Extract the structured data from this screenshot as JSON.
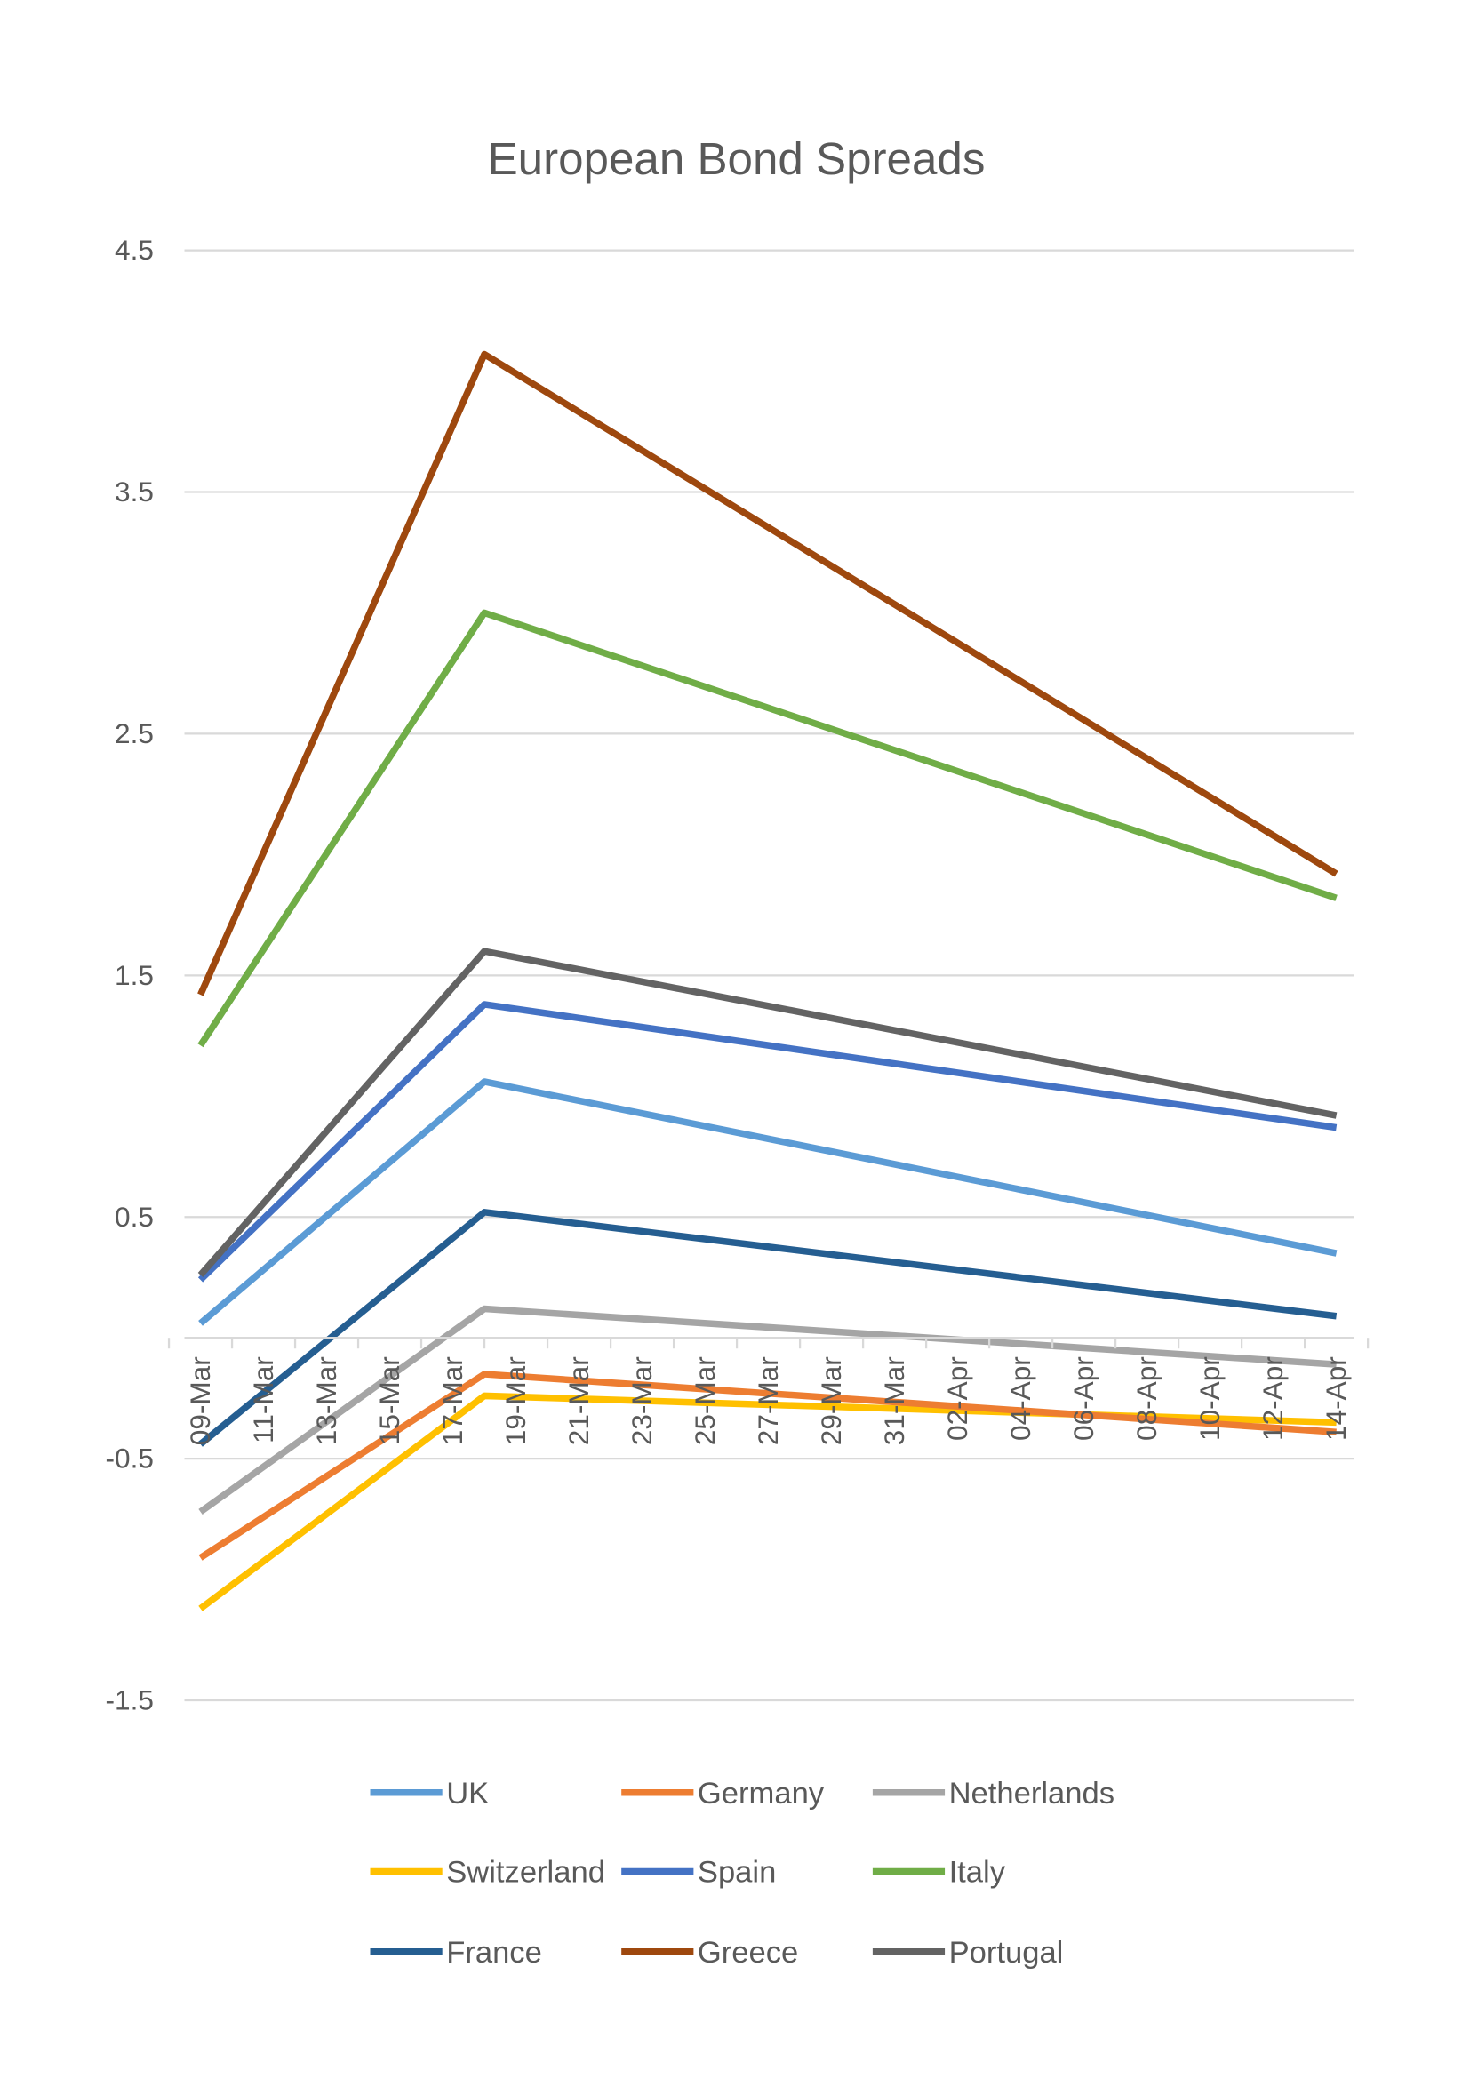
{
  "chart_data": {
    "type": "line",
    "title": "European Bond Spreads",
    "xlabel": "",
    "ylabel": "",
    "x_tick_labels": [
      "09-Mar",
      "11-Mar",
      "13-Mar",
      "15-Mar",
      "17-Mar",
      "19-Mar",
      "21-Mar",
      "23-Mar",
      "25-Mar",
      "27-Mar",
      "29-Mar",
      "31-Mar",
      "02-Apr",
      "04-Apr",
      "06-Apr",
      "08-Apr",
      "10-Apr",
      "12-Apr",
      "14-Apr"
    ],
    "x": [
      "09-Mar",
      "18-Mar",
      "14-Apr"
    ],
    "y_ticks": [
      4.5,
      3.5,
      2.5,
      1.5,
      0.5,
      -0.5,
      -1.5
    ],
    "ylim": [
      -1.5,
      4.5
    ],
    "grid": true,
    "legend_position": "bottom",
    "series": [
      {
        "name": "UK",
        "color": "#5B9BD5",
        "values": [
          0.06,
          1.06,
          0.35
        ]
      },
      {
        "name": "Germany",
        "color": "#ED7D31",
        "values": [
          -0.91,
          -0.15,
          -0.39
        ]
      },
      {
        "name": "Netherlands",
        "color": "#A5A5A5",
        "values": [
          -0.72,
          0.12,
          -0.11
        ]
      },
      {
        "name": "Switzerland",
        "color": "#FFC000",
        "values": [
          -1.12,
          -0.24,
          -0.35
        ]
      },
      {
        "name": "Spain",
        "color": "#4472C4",
        "values": [
          0.24,
          1.38,
          0.87
        ]
      },
      {
        "name": "Italy",
        "color": "#70AD47",
        "values": [
          1.21,
          3.0,
          1.82
        ]
      },
      {
        "name": "France",
        "color": "#255E91",
        "values": [
          -0.44,
          0.52,
          0.09
        ]
      },
      {
        "name": "Greece",
        "color": "#9E480E",
        "values": [
          1.42,
          4.07,
          1.92
        ]
      },
      {
        "name": "Portugal",
        "color": "#636363",
        "values": [
          0.26,
          1.6,
          0.92
        ]
      }
    ]
  }
}
